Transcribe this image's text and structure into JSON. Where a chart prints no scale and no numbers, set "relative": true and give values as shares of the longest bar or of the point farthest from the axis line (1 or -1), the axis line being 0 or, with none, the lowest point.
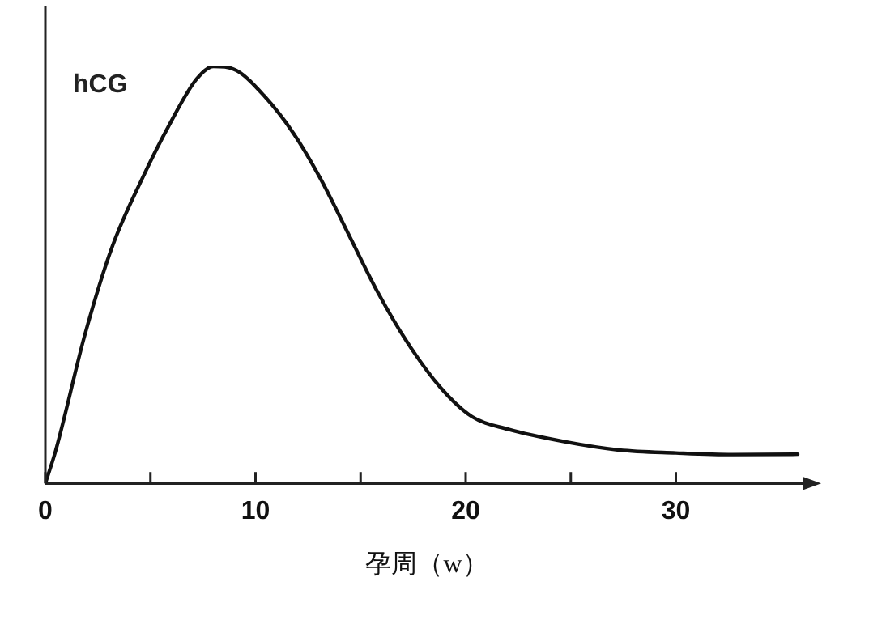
{
  "chart_data": {
    "type": "line",
    "relative": true,
    "ylabel": "hCG",
    "xlabel": "孕周（w）",
    "marker": "none",
    "line_style": "solid",
    "grid": false,
    "legend": false,
    "xlim": [
      0,
      36.3
    ],
    "xticks": [
      0,
      {
        "value": 5,
        "label": null
      },
      10,
      {
        "value": 15,
        "label": null
      },
      20,
      {
        "value": 25,
        "label": null
      },
      30
    ],
    "series": [
      {
        "color": "#111111",
        "x": [
          0,
          0.5,
          1.9,
          3.2,
          4.6,
          5.9,
          7.2,
          8.0,
          9.1,
          10.4,
          11.8,
          13.1,
          14.5,
          15.8,
          17.2,
          18.8,
          20.3,
          22.0,
          24.7,
          27.3,
          30.0,
          32.7,
          35.8
        ],
        "values": [
          0,
          0.08,
          0.36,
          0.57,
          0.73,
          0.86,
          0.97,
          1,
          0.99,
          0.93,
          0.84,
          0.73,
          0.59,
          0.46,
          0.34,
          0.23,
          0.16,
          0.13,
          0.1,
          0.08,
          0.073,
          0.069,
          0.07
        ]
      }
    ]
  }
}
